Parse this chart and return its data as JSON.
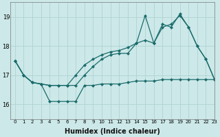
{
  "title": "",
  "xlabel": "Humidex (Indice chaleur)",
  "bg_color": "#cce8e8",
  "line_color": "#1a6b6b",
  "grid_color": "#aacfcf",
  "xlim": [
    -0.5,
    23
  ],
  "ylim": [
    15.5,
    19.5
  ],
  "yticks": [
    16,
    17,
    18,
    19
  ],
  "xticks": [
    0,
    1,
    2,
    3,
    4,
    5,
    6,
    7,
    8,
    9,
    10,
    11,
    12,
    13,
    14,
    15,
    16,
    17,
    18,
    19,
    20,
    21,
    22,
    23
  ],
  "line1_x": [
    0,
    1,
    2,
    3,
    4,
    5,
    6,
    7,
    8,
    9,
    10,
    11,
    12,
    13,
    14,
    15,
    16,
    17,
    18,
    19,
    20,
    21,
    22,
    23
  ],
  "line1_y": [
    17.5,
    17.0,
    16.75,
    16.7,
    16.1,
    16.1,
    16.1,
    16.1,
    16.65,
    16.65,
    16.7,
    16.7,
    16.7,
    16.75,
    16.8,
    16.8,
    16.8,
    16.85,
    16.85,
    16.85,
    16.85,
    16.85,
    16.85,
    16.85
  ],
  "line2_x": [
    0,
    1,
    2,
    3,
    4,
    5,
    6,
    7,
    8,
    9,
    10,
    11,
    12,
    13,
    14,
    15,
    16,
    17,
    18,
    19,
    20,
    21,
    22,
    23
  ],
  "line2_y": [
    17.5,
    17.0,
    16.75,
    16.7,
    16.65,
    16.65,
    16.65,
    16.65,
    17.0,
    17.3,
    17.55,
    17.7,
    17.75,
    17.75,
    18.1,
    19.05,
    18.1,
    18.65,
    18.75,
    19.05,
    18.65,
    18.0,
    17.55,
    16.85
  ],
  "line3_x": [
    0,
    1,
    2,
    3,
    4,
    5,
    6,
    7,
    8,
    9,
    10,
    11,
    12,
    13,
    14,
    15,
    16,
    17,
    18,
    19,
    20,
    21,
    22,
    23
  ],
  "line3_y": [
    17.5,
    17.0,
    16.75,
    16.7,
    16.65,
    16.65,
    16.65,
    17.0,
    17.35,
    17.55,
    17.7,
    17.8,
    17.85,
    17.95,
    18.1,
    18.2,
    18.1,
    18.75,
    18.65,
    19.1,
    18.65,
    18.0,
    17.55,
    16.85
  ],
  "xlabel_fontsize": 7,
  "tick_fontsize": 5,
  "ytick_fontsize": 6,
  "lw": 0.9,
  "ms": 2.2
}
